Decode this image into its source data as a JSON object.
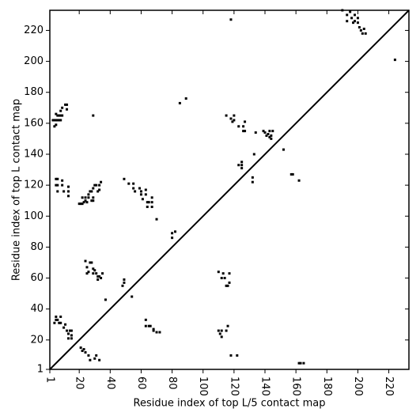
{
  "chart_data": {
    "type": "scatter",
    "x_label": "Residue index of top L/5 contact map",
    "y_label": "Residue index of top L contact map",
    "xlim": [
      1,
      233
    ],
    "ylim": [
      1,
      233
    ],
    "xticks": [
      1,
      20,
      40,
      60,
      80,
      100,
      120,
      140,
      160,
      180,
      200,
      220
    ],
    "yticks": [
      1,
      20,
      40,
      60,
      80,
      100,
      120,
      140,
      160,
      180,
      200,
      220
    ],
    "diagonal": true,
    "series": [
      {
        "color": "#000000",
        "x": [
          3,
          4,
          5,
          6,
          7,
          8,
          4,
          5,
          5,
          6,
          7,
          8,
          9,
          8,
          9,
          11,
          12,
          12,
          29,
          5,
          6,
          5,
          6,
          9,
          9,
          6,
          10,
          13,
          13,
          13,
          20,
          21,
          22,
          23,
          24,
          22,
          24,
          26,
          26,
          27,
          28,
          29,
          30,
          31,
          33,
          34,
          29,
          29,
          32,
          33,
          25,
          28,
          49,
          52,
          55,
          55,
          56,
          59,
          60,
          60,
          63,
          63,
          61,
          64,
          65,
          67,
          64,
          67,
          67,
          70,
          80,
          80,
          82,
          85,
          89,
          118,
          115,
          118,
          119,
          120,
          120,
          123,
          126,
          126,
          127,
          127,
          134,
          123,
          125,
          125,
          125,
          132,
          132,
          133,
          139,
          140,
          141,
          142,
          143,
          144,
          143,
          145,
          144,
          152,
          157,
          158,
          162,
          190,
          193,
          193,
          195,
          196,
          197,
          198,
          198,
          200,
          200,
          201,
          202,
          203,
          205,
          204,
          224,
          4,
          5,
          5,
          6,
          7,
          8,
          8,
          10,
          11,
          12,
          13,
          14,
          15,
          15,
          13,
          15,
          21,
          22,
          23,
          24,
          26,
          27,
          30,
          31,
          33,
          24,
          25,
          25,
          26,
          27,
          28,
          29,
          29,
          30,
          31,
          32,
          32,
          33,
          34,
          35,
          37,
          49,
          48,
          49,
          54,
          63,
          63,
          65,
          66,
          68,
          68,
          70,
          72,
          110,
          111,
          112,
          112,
          115,
          116,
          110,
          112,
          113,
          114,
          115,
          116,
          117,
          117,
          118,
          122,
          162,
          163,
          165
        ],
        "values": [
          162,
          162,
          162,
          162,
          162,
          162,
          158,
          159,
          166,
          165,
          165,
          165,
          165,
          168,
          170,
          172,
          172,
          169,
          165,
          124,
          124,
          120,
          120,
          120,
          123,
          116,
          116,
          116,
          119,
          113,
          108,
          108,
          108,
          109,
          110,
          112,
          112,
          112,
          114,
          116,
          116,
          118,
          120,
          120,
          120,
          122,
          112,
          110,
          116,
          117,
          109,
          110,
          124,
          121,
          121,
          118,
          116,
          118,
          116,
          114,
          117,
          114,
          111,
          109,
          109,
          109,
          106,
          106,
          112,
          98,
          86,
          89,
          90,
          173,
          176,
          227,
          165,
          163,
          161,
          162,
          165,
          158,
          158,
          155,
          155,
          161,
          154,
          133,
          133,
          135,
          131,
          122,
          125,
          140,
          155,
          154,
          152,
          153,
          151,
          150,
          155,
          155,
          152,
          143,
          127,
          127,
          123,
          233,
          230,
          226,
          232,
          228,
          225,
          226,
          230,
          225,
          228,
          222,
          220,
          218,
          218,
          221,
          201,
          31,
          33,
          35,
          33,
          31,
          31,
          35,
          28,
          30,
          26,
          24,
          26,
          23,
          21,
          21,
          26,
          15,
          13,
          14,
          12,
          10,
          7,
          8,
          10,
          7,
          71,
          67,
          63,
          64,
          70,
          70,
          66,
          63,
          65,
          63,
          61,
          59,
          61,
          60,
          63,
          46,
          57,
          55,
          59,
          48,
          33,
          29,
          29,
          29,
          26,
          27,
          25,
          25,
          26,
          24,
          22,
          26,
          26,
          29,
          64,
          60,
          63,
          60,
          55,
          55,
          57,
          63,
          10,
          10,
          5,
          5,
          5
        ]
      }
    ]
  }
}
